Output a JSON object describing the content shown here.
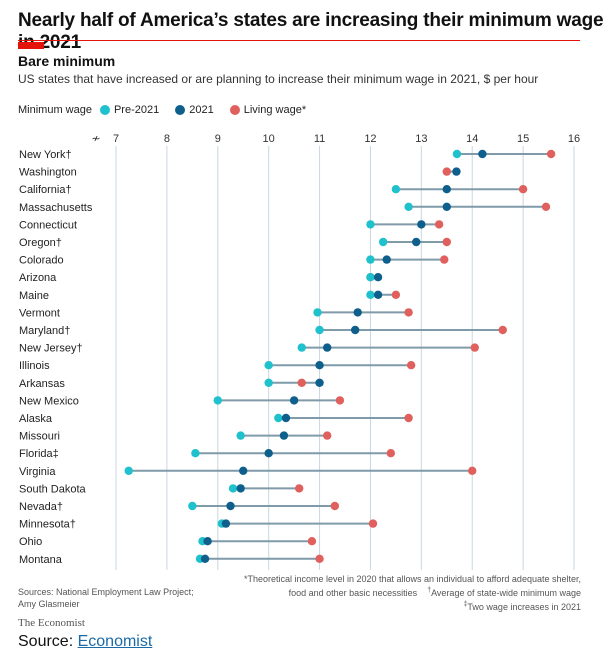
{
  "headline": "Nearly half of America’s states are increasing their minimum wage in 2021",
  "title": "Bare minimum",
  "subtitle": "US states that have increased or are planning to increase their minimum wage in 2021, $ per hour",
  "legend": {
    "title": "Minimum wage",
    "items": [
      "Pre-2021",
      "2021",
      "Living wage*"
    ]
  },
  "colors": {
    "pre2021": "#1fc1cc",
    "y2021": "#0f5f8c",
    "living": "#e0605e",
    "accent": "#e3120b"
  },
  "chart_data": {
    "type": "dot-plot",
    "xlim": [
      6.5,
      16
    ],
    "x_ticks": [
      7,
      8,
      9,
      10,
      11,
      12,
      13,
      14,
      15,
      16
    ],
    "grid": true,
    "categories": [
      "New York†",
      "Washington",
      "California†",
      "Massachusetts",
      "Connecticut",
      "Oregon†",
      "Colorado",
      "Arizona",
      "Maine",
      "Vermont",
      "Maryland†",
      "New Jersey†",
      "Illinois",
      "Arkansas",
      "New Mexico",
      "Alaska",
      "Missouri",
      "Florida‡",
      "Virginia",
      "South Dakota",
      "Nevada†",
      "Minnesota†",
      "Ohio",
      "Montana"
    ],
    "series": [
      {
        "name": "Pre-2021",
        "values": [
          13.7,
          null,
          12.5,
          12.75,
          12.0,
          12.25,
          12.0,
          12.0,
          12.0,
          10.96,
          11.0,
          10.65,
          10.0,
          10.0,
          9.0,
          10.19,
          9.45,
          8.56,
          7.25,
          9.3,
          8.5,
          9.08,
          8.7,
          8.65
        ]
      },
      {
        "name": "2021",
        "values": [
          14.2,
          13.69,
          13.5,
          13.5,
          13.0,
          12.9,
          12.32,
          12.15,
          12.15,
          11.75,
          11.7,
          11.15,
          11.0,
          11.0,
          10.5,
          10.34,
          10.3,
          10.0,
          9.5,
          9.45,
          9.25,
          9.16,
          8.8,
          8.75
        ]
      },
      {
        "name": "Living wage*",
        "values": [
          15.55,
          13.5,
          15.0,
          15.45,
          13.35,
          13.5,
          13.45,
          12.0,
          12.5,
          12.75,
          14.6,
          14.05,
          12.8,
          10.65,
          11.4,
          12.75,
          11.15,
          12.4,
          14.0,
          10.6,
          11.3,
          12.05,
          10.85,
          11.0
        ]
      }
    ]
  },
  "sources": "Sources: National Employment Law Project; Amy Glasmeier",
  "notes": {
    "line1": "*Theoretical income level in 2020 that allows an individual to afford adequate shelter,",
    "line2": "food and other basic necessities",
    "line2b": "Average of state-wide minimum wage",
    "line3": "Two wage increases in 2021"
  },
  "brand": "The Economist",
  "source_line": {
    "label": "Source:",
    "link": "Economist"
  }
}
